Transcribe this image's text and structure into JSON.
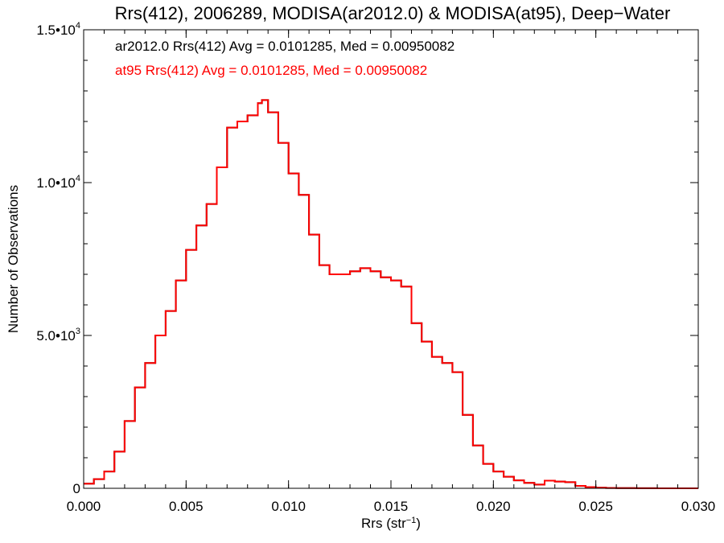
{
  "chart_data": {
    "type": "line",
    "title": "Rrs(412), 2006289, MODISA(ar2012.0) & MODISA(at95), Deep−Water",
    "xlabel": "Rrs (str",
    "xlabel_sup": "−1",
    "xlabel_end": ")",
    "ylabel": "Number of Observations",
    "xlim": [
      0.0,
      0.03
    ],
    "ylim": [
      0,
      15000
    ],
    "grid": false,
    "x_ticks": [
      {
        "value": 0.0,
        "label": "0.000"
      },
      {
        "value": 0.005,
        "label": "0.005"
      },
      {
        "value": 0.01,
        "label": "0.010"
      },
      {
        "value": 0.015,
        "label": "0.015"
      },
      {
        "value": 0.02,
        "label": "0.020"
      },
      {
        "value": 0.025,
        "label": "0.025"
      },
      {
        "value": 0.03,
        "label": "0.030"
      }
    ],
    "y_ticks": [
      {
        "value": 0,
        "label": "0",
        "exp": ""
      },
      {
        "value": 5000,
        "label": "5.0•10",
        "exp": "3"
      },
      {
        "value": 10000,
        "label": "1.0•10",
        "exp": "4"
      },
      {
        "value": 15000,
        "label": "1.5•10",
        "exp": "4"
      }
    ],
    "annotations": [
      {
        "text": "ar2012.0 Rrs(412) Avg = 0.0101285, Med = 0.00950082",
        "color": "#000000"
      },
      {
        "text": "at95 Rrs(412) Avg = 0.0101285, Med = 0.00950082",
        "color": "#ff0000"
      }
    ],
    "series": [
      {
        "color": "#000000",
        "style": "step",
        "x": [
          0.0,
          0.0005,
          0.001,
          0.0015,
          0.002,
          0.0025,
          0.003,
          0.0035,
          0.004,
          0.0045,
          0.005,
          0.0055,
          0.006,
          0.0065,
          0.007,
          0.0075,
          0.008,
          0.0085,
          0.0087,
          0.009,
          0.0095,
          0.01,
          0.0105,
          0.011,
          0.0115,
          0.012,
          0.0125,
          0.013,
          0.0135,
          0.014,
          0.0145,
          0.015,
          0.0155,
          0.016,
          0.0165,
          0.017,
          0.0175,
          0.018,
          0.0185,
          0.019,
          0.0195,
          0.02,
          0.0205,
          0.021,
          0.0215,
          0.022,
          0.0225,
          0.023,
          0.0235,
          0.024,
          0.0245,
          0.025,
          0.0255,
          0.026,
          0.027,
          0.028,
          0.029,
          0.03
        ],
        "y": [
          150,
          300,
          550,
          1200,
          2200,
          3300,
          4100,
          5000,
          5800,
          6800,
          7800,
          8600,
          9300,
          10500,
          11800,
          12000,
          12200,
          12600,
          12700,
          12300,
          11300,
          10300,
          9600,
          8300,
          7300,
          7000,
          7000,
          7100,
          7200,
          7100,
          6900,
          6800,
          6600,
          5400,
          4800,
          4300,
          4100,
          3800,
          2400,
          1400,
          800,
          550,
          380,
          260,
          180,
          120,
          250,
          220,
          200,
          80,
          40,
          20,
          10,
          5,
          2,
          1,
          0,
          0
        ]
      },
      {
        "color": "#ff0000",
        "style": "step",
        "x": [
          0.0,
          0.0005,
          0.001,
          0.0015,
          0.002,
          0.0025,
          0.003,
          0.0035,
          0.004,
          0.0045,
          0.005,
          0.0055,
          0.006,
          0.0065,
          0.007,
          0.0075,
          0.008,
          0.0085,
          0.0087,
          0.009,
          0.0095,
          0.01,
          0.0105,
          0.011,
          0.0115,
          0.012,
          0.0125,
          0.013,
          0.0135,
          0.014,
          0.0145,
          0.015,
          0.0155,
          0.016,
          0.0165,
          0.017,
          0.0175,
          0.018,
          0.0185,
          0.019,
          0.0195,
          0.02,
          0.0205,
          0.021,
          0.0215,
          0.022,
          0.0225,
          0.023,
          0.0235,
          0.024,
          0.0245,
          0.025,
          0.0255,
          0.026,
          0.027,
          0.028,
          0.029,
          0.03
        ],
        "y": [
          150,
          300,
          550,
          1200,
          2200,
          3300,
          4100,
          5000,
          5800,
          6800,
          7800,
          8600,
          9300,
          10500,
          11800,
          12000,
          12200,
          12600,
          12700,
          12300,
          11300,
          10300,
          9600,
          8300,
          7300,
          7000,
          7000,
          7100,
          7200,
          7100,
          6900,
          6800,
          6600,
          5400,
          4800,
          4300,
          4100,
          3800,
          2400,
          1400,
          800,
          550,
          380,
          260,
          180,
          120,
          250,
          220,
          200,
          80,
          40,
          20,
          10,
          5,
          2,
          1,
          0,
          0
        ]
      }
    ]
  }
}
